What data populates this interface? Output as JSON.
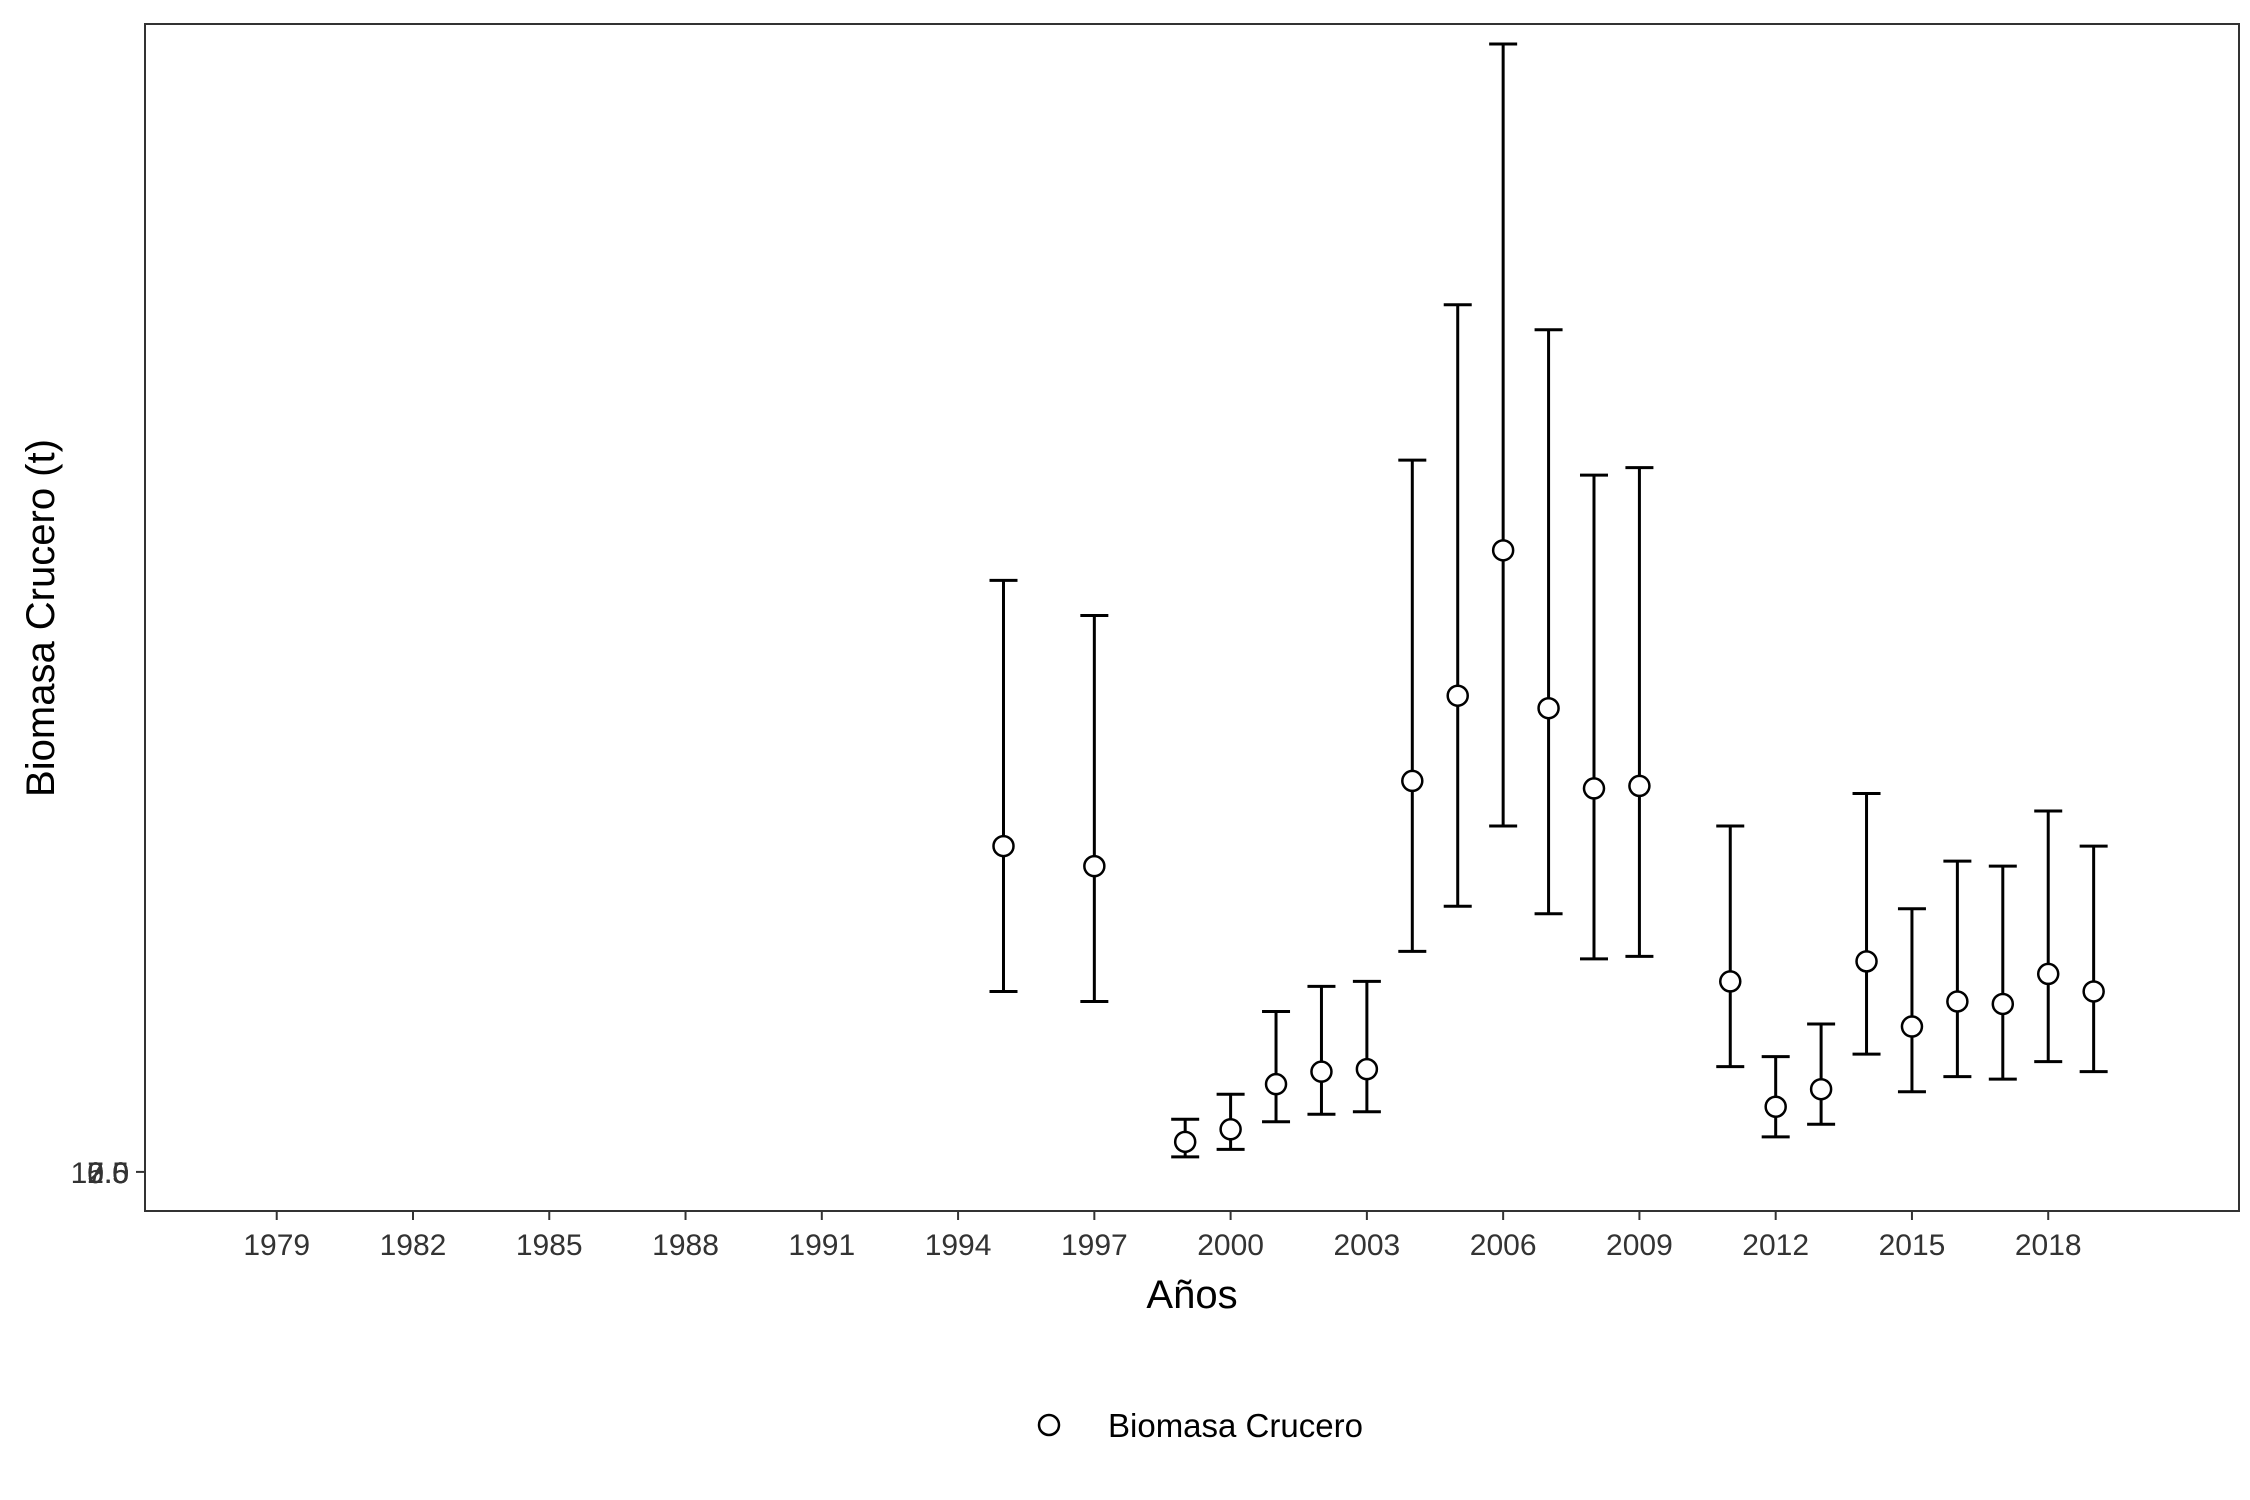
{
  "chart_data": {
    "type": "scatter",
    "xlabel": "Años",
    "ylabel": "Biomasa Crucero (t)",
    "x_ticks": [
      "1979",
      "1982",
      "1985",
      "1988",
      "1991",
      "1994",
      "1997",
      "2000",
      "2003",
      "2006",
      "2009",
      "2012",
      "2015",
      "2018"
    ],
    "y_ticks": [
      "0.0",
      "2.5",
      "5.0",
      "7.5",
      "10.0"
    ],
    "xlim": [
      1976.1,
      2022.2
    ],
    "ylim": [
      -0.78,
      22.9
    ],
    "grid": false,
    "legend_position": "bottom",
    "series": [
      {
        "name": "Biomasa Crucero",
        "marker": "open-circle",
        "color": "#000000",
        "points": [
          {
            "x": 1995,
            "y": 6.5,
            "lower": 3.6,
            "upper": 11.8
          },
          {
            "x": 1997,
            "y": 6.1,
            "lower": 3.4,
            "upper": 11.1
          },
          {
            "x": 1999,
            "y": 0.6,
            "lower": 0.3,
            "upper": 1.05
          },
          {
            "x": 2000,
            "y": 0.85,
            "lower": 0.45,
            "upper": 1.55
          },
          {
            "x": 2001,
            "y": 1.75,
            "lower": 1.0,
            "upper": 3.2
          },
          {
            "x": 2002,
            "y": 2.0,
            "lower": 1.15,
            "upper": 3.7
          },
          {
            "x": 2003,
            "y": 2.05,
            "lower": 1.2,
            "upper": 3.8
          },
          {
            "x": 2004,
            "y": 7.8,
            "lower": 4.4,
            "upper": 14.2
          },
          {
            "x": 2005,
            "y": 9.5,
            "lower": 5.3,
            "upper": 17.3
          },
          {
            "x": 2006,
            "y": 12.4,
            "lower": 6.9,
            "upper": 22.5
          },
          {
            "x": 2007,
            "y": 9.25,
            "lower": 5.15,
            "upper": 16.8
          },
          {
            "x": 2008,
            "y": 7.65,
            "lower": 4.25,
            "upper": 13.9
          },
          {
            "x": 2009,
            "y": 7.7,
            "lower": 4.3,
            "upper": 14.05
          },
          {
            "x": 2011,
            "y": 3.8,
            "lower": 2.1,
            "upper": 6.9
          },
          {
            "x": 2012,
            "y": 1.3,
            "lower": 0.7,
            "upper": 2.3
          },
          {
            "x": 2013,
            "y": 1.65,
            "lower": 0.95,
            "upper": 2.95
          },
          {
            "x": 2014,
            "y": 4.2,
            "lower": 2.35,
            "upper": 7.55
          },
          {
            "x": 2015,
            "y": 2.9,
            "lower": 1.6,
            "upper": 5.25
          },
          {
            "x": 2016,
            "y": 3.4,
            "lower": 1.9,
            "upper": 6.2
          },
          {
            "x": 2017,
            "y": 3.35,
            "lower": 1.85,
            "upper": 6.1
          },
          {
            "x": 2018,
            "y": 3.95,
            "lower": 2.2,
            "upper": 7.2
          },
          {
            "x": 2019,
            "y": 3.6,
            "lower": 2.0,
            "upper": 6.5
          }
        ]
      }
    ]
  }
}
